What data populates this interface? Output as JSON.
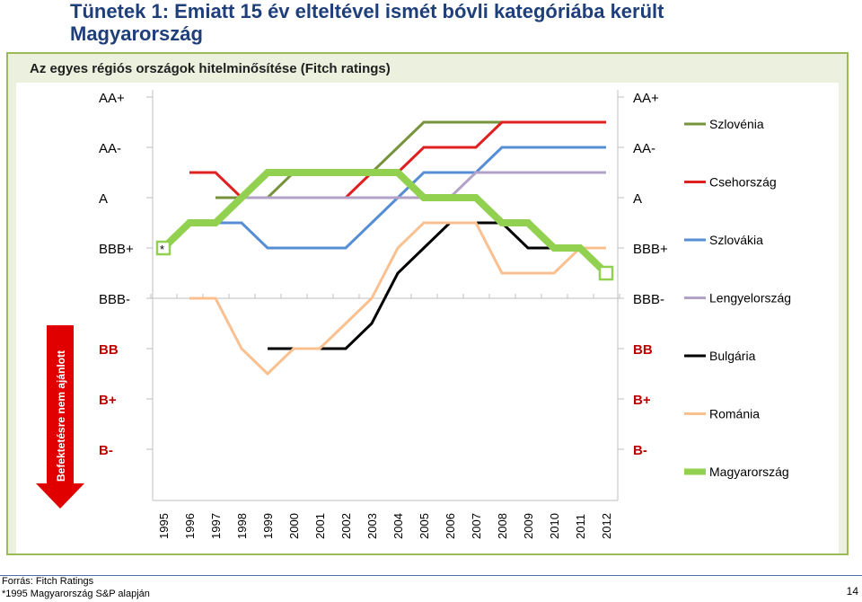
{
  "title": "Tünetek 1: Emiatt 15 év elteltével ismét bóvli kategóriába került Magyarország",
  "subtitle": "Az egyes régiós országok hitelminősítése (Fitch ratings)",
  "footer": {
    "source": "Forrás: Fitch Ratings",
    "note": "*1995 Magyarország S&P alapján",
    "page_number": "14"
  },
  "chart_data": {
    "type": "line",
    "title": "Az egyes régiós országok hitelminősítése (Fitch ratings)",
    "x_categories": [
      "1995",
      "1996",
      "1997",
      "1998",
      "1999",
      "2000",
      "2001",
      "2002",
      "2003",
      "2004",
      "2005",
      "2006",
      "2007",
      "2008",
      "2009",
      "2010",
      "2011",
      "2012"
    ],
    "y_ratings": [
      "AA+",
      "AA-",
      "A",
      "BBB+",
      "BBB-",
      "BB",
      "B+",
      "B-"
    ],
    "y_scale_note": "notch scale: AA+=0 … B-=14 (each label two notches apart)",
    "investment_grade_floor": "BBB-",
    "arrow_label": "Befektetésre nem ajánlott",
    "asterisk_label": "*",
    "series": [
      {
        "name": "Szlovénia",
        "color": "#77933c",
        "notches": [
          null,
          null,
          4,
          4,
          4,
          3,
          3,
          3,
          3,
          2,
          1,
          1,
          1,
          1,
          1,
          1,
          1,
          1
        ]
      },
      {
        "name": "Csehország",
        "color": "#e02020",
        "notches": [
          null,
          3,
          3,
          4,
          4,
          4,
          4,
          4,
          3,
          3,
          2,
          2,
          2,
          1,
          1,
          1,
          1,
          1
        ]
      },
      {
        "name": "Szlovákia",
        "color": "#558ed5",
        "notches": [
          null,
          null,
          5,
          5,
          6,
          6,
          6,
          6,
          5,
          4,
          3,
          3,
          3,
          2,
          2,
          2,
          2,
          2
        ]
      },
      {
        "name": "Lengyelország",
        "color": "#b3a2c7",
        "notches": [
          6,
          5,
          5,
          4,
          4,
          4,
          4,
          4,
          4,
          4,
          4,
          4,
          3,
          3,
          3,
          3,
          3,
          3
        ]
      },
      {
        "name": "Bulgária",
        "color": "#000000",
        "notches": [
          null,
          null,
          null,
          null,
          10,
          10,
          10,
          10,
          9,
          7,
          6,
          5,
          5,
          5,
          6,
          6,
          6,
          6
        ]
      },
      {
        "name": "Románia",
        "color": "#fac090",
        "notches": [
          null,
          8,
          8,
          10,
          11,
          10,
          10,
          9,
          8,
          6,
          5,
          5,
          5,
          7,
          7,
          7,
          6,
          6
        ]
      },
      {
        "name": "Magyarország",
        "color": "#92d050",
        "notches": [
          6,
          5,
          5,
          4,
          3,
          3,
          3,
          3,
          3,
          3,
          4,
          4,
          4,
          5,
          5,
          6,
          6,
          7
        ]
      }
    ]
  }
}
